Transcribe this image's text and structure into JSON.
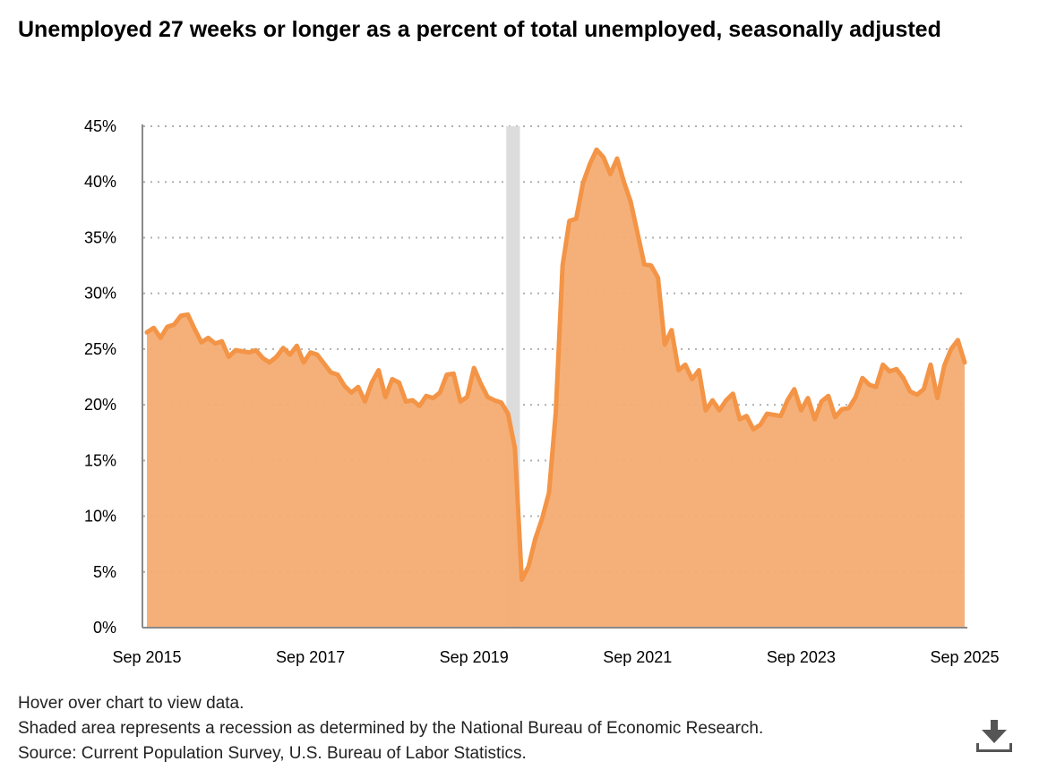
{
  "title": "Unemployed 27 weeks or longer as a percent of total unemployed, seasonally adjusted",
  "notes": [
    "Hover over chart to view data.",
    "Shaded area represents a recession as determined by the National Bureau of Economic Research.",
    "Source: Current Population Survey, U.S. Bureau of Labor Statistics."
  ],
  "download_icon": "download-icon",
  "chart_data": {
    "type": "area",
    "title": "Unemployed 27 weeks or longer as a percent of total unemployed, seasonally adjusted",
    "xlabel": "",
    "ylabel": "",
    "start_month": "Sep 2015",
    "end_month": "Sep 2025",
    "frequency": "monthly",
    "ylim": [
      0,
      45
    ],
    "y_ticks": [
      "0%",
      "5%",
      "10%",
      "15%",
      "20%",
      "25%",
      "30%",
      "35%",
      "40%",
      "45%"
    ],
    "y_tick_values": [
      0,
      5,
      10,
      15,
      20,
      25,
      30,
      35,
      40,
      45
    ],
    "x_ticks": [
      "Sep 2015",
      "Sep 2017",
      "Sep 2019",
      "Sep 2021",
      "Sep 2023",
      "Sep 2025"
    ],
    "x_tick_month_index": [
      0,
      24,
      48,
      72,
      96,
      120
    ],
    "grid": "horizontal dotted",
    "recession": {
      "start": "Feb 2020",
      "end": "Apr 2020"
    },
    "colors": {
      "line": "#f39446",
      "fill": "#f4ac72",
      "recession": "#dcdcdc",
      "grid": "#b0b0b0",
      "axis": "#888888"
    },
    "values": [
      26.5,
      26.9,
      26.0,
      27.0,
      27.2,
      28.0,
      28.1,
      26.8,
      25.6,
      26.0,
      25.5,
      25.7,
      24.3,
      24.9,
      24.8,
      24.7,
      24.9,
      24.2,
      23.8,
      24.3,
      25.1,
      24.5,
      25.3,
      23.8,
      24.7,
      24.5,
      23.7,
      22.9,
      22.7,
      21.7,
      21.1,
      21.6,
      20.3,
      22.0,
      23.1,
      20.7,
      22.3,
      22.0,
      20.3,
      20.4,
      19.9,
      20.8,
      20.6,
      21.1,
      22.7,
      22.8,
      20.3,
      20.7,
      23.3,
      21.9,
      20.7,
      20.4,
      20.2,
      19.2,
      16.1,
      4.3,
      5.5,
      8.0,
      9.8,
      12.1,
      19.3,
      32.5,
      36.5,
      36.7,
      39.9,
      41.6,
      42.9,
      42.2,
      40.7,
      42.1,
      40.0,
      38.2,
      35.4,
      32.6,
      32.5,
      31.4,
      25.4,
      26.7,
      23.1,
      23.6,
      22.3,
      23.1,
      19.5,
      20.4,
      19.5,
      20.4,
      21.0,
      18.7,
      19.0,
      17.8,
      18.2,
      19.2,
      19.1,
      19.0,
      20.4,
      21.4,
      19.5,
      20.6,
      18.7,
      20.3,
      20.8,
      18.9,
      19.6,
      19.7,
      20.7,
      22.4,
      21.8,
      21.6,
      23.6,
      23.0,
      23.2,
      22.4,
      21.2,
      20.9,
      21.4,
      23.6,
      20.6,
      23.5,
      25.0,
      25.8,
      23.8
    ]
  }
}
